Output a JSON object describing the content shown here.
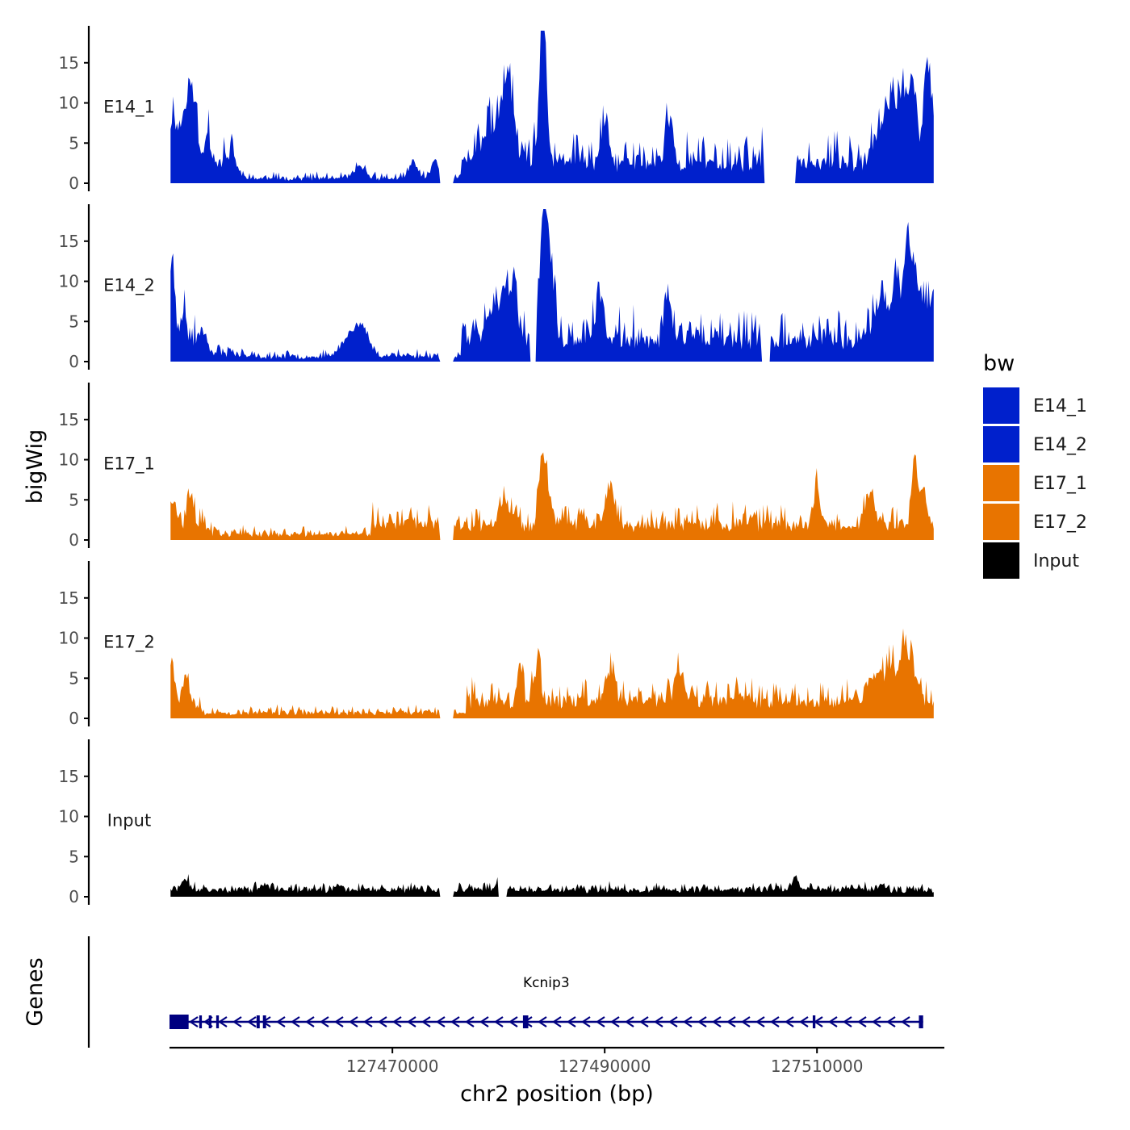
{
  "colors": {
    "E14": "#0020CC",
    "E17": "#E87400",
    "Input": "#000000",
    "gene": "#000080",
    "axis": "#000000"
  },
  "chart_data": {
    "type": "area",
    "title": "",
    "xlabel": "chr2 position (bp)",
    "ylabel": "bigWig",
    "genes_label": "Genes",
    "ylim": [
      0,
      19
    ],
    "yticks": [
      0,
      5,
      10,
      15
    ],
    "xlim": [
      127449000,
      127522000
    ],
    "xticks": [
      127470000,
      127490000,
      127510000
    ],
    "xtick_labels": [
      "127470000",
      "127490000",
      "127510000"
    ],
    "legend": {
      "title": "bw",
      "position": "right",
      "entries": [
        {
          "label": "E14_1",
          "color": "#0020CC"
        },
        {
          "label": "E14_2",
          "color": "#0020CC"
        },
        {
          "label": "E17_1",
          "color": "#E87400"
        },
        {
          "label": "E17_2",
          "color": "#E87400"
        },
        {
          "label": "Input",
          "color": "#000000"
        }
      ]
    },
    "series": [
      {
        "name": "E14_1",
        "color": "#0020CC",
        "seed": 11,
        "base": 2.2,
        "noise": 2.6,
        "low": [
          [
            127450000,
            127451200,
            1.8
          ],
          [
            127455000,
            127456500,
            0.8
          ],
          [
            127456500,
            127468000,
            0.5
          ],
          [
            127468000,
            127476500,
            0.5
          ],
          [
            127474500,
            127475800,
            -0.3
          ],
          [
            127505000,
            127508000,
            -0.4
          ]
        ],
        "peaks": [
          {
            "x": 127449300,
            "h": 5.5,
            "w": 400
          },
          {
            "x": 127450500,
            "h": 6.5,
            "w": 450
          },
          {
            "x": 127451200,
            "h": 7.2,
            "w": 350
          },
          {
            "x": 127452600,
            "h": 3.5,
            "w": 300
          },
          {
            "x": 127455000,
            "h": 2.5,
            "w": 300
          },
          {
            "x": 127467000,
            "h": 1.5,
            "w": 500
          },
          {
            "x": 127472000,
            "h": 2.0,
            "w": 400
          },
          {
            "x": 127474000,
            "h": 2.6,
            "w": 300
          },
          {
            "x": 127479000,
            "h": 4.0,
            "w": 700
          },
          {
            "x": 127480500,
            "h": 7.5,
            "w": 500
          },
          {
            "x": 127481200,
            "h": 5.5,
            "w": 400
          },
          {
            "x": 127484200,
            "h": 18.3,
            "w": 320
          },
          {
            "x": 127490000,
            "h": 5.0,
            "w": 300
          },
          {
            "x": 127496000,
            "h": 5.5,
            "w": 300
          },
          {
            "x": 127516000,
            "h": 4.5,
            "w": 700
          },
          {
            "x": 127517200,
            "h": 6.5,
            "w": 500
          },
          {
            "x": 127518200,
            "h": 8.0,
            "w": 400
          },
          {
            "x": 127519000,
            "h": 9.5,
            "w": 300
          },
          {
            "x": 127520300,
            "h": 9.8,
            "w": 300
          },
          {
            "x": 127521000,
            "h": 5.5,
            "w": 600
          }
        ]
      },
      {
        "name": "E14_2",
        "color": "#0020CC",
        "seed": 23,
        "base": 2.3,
        "noise": 2.5,
        "low": [
          [
            127452000,
            127456000,
            0.8
          ],
          [
            127456000,
            127468000,
            0.5
          ],
          [
            127468000,
            127476500,
            0.6
          ],
          [
            127474500,
            127475800,
            -0.3
          ],
          [
            127483000,
            127483600,
            -0.6
          ],
          [
            127504800,
            127505600,
            -0.5
          ]
        ],
        "peaks": [
          {
            "x": 127449200,
            "h": 10.0,
            "w": 250
          },
          {
            "x": 127450300,
            "h": 3.5,
            "w": 300
          },
          {
            "x": 127452300,
            "h": 2.8,
            "w": 300
          },
          {
            "x": 127466000,
            "h": 2.5,
            "w": 800
          },
          {
            "x": 127467200,
            "h": 3.0,
            "w": 600
          },
          {
            "x": 127479500,
            "h": 4.5,
            "w": 600
          },
          {
            "x": 127480700,
            "h": 5.5,
            "w": 450
          },
          {
            "x": 127481500,
            "h": 7.0,
            "w": 250
          },
          {
            "x": 127484200,
            "h": 14.5,
            "w": 300
          },
          {
            "x": 127484800,
            "h": 10.0,
            "w": 400
          },
          {
            "x": 127489500,
            "h": 5.0,
            "w": 400
          },
          {
            "x": 127496000,
            "h": 6.0,
            "w": 300
          },
          {
            "x": 127516000,
            "h": 4.5,
            "w": 700
          },
          {
            "x": 127517500,
            "h": 7.5,
            "w": 400
          },
          {
            "x": 127518500,
            "h": 12.5,
            "w": 300
          },
          {
            "x": 127519300,
            "h": 8.0,
            "w": 400
          },
          {
            "x": 127520500,
            "h": 4.5,
            "w": 500
          }
        ]
      },
      {
        "name": "E17_1",
        "color": "#E87400",
        "seed": 37,
        "base": 1.6,
        "noise": 1.8,
        "low": [
          [
            127453000,
            127455000,
            0.6
          ],
          [
            127455000,
            127468000,
            0.6
          ],
          [
            127474500,
            127475800,
            -0.3
          ]
        ],
        "peaks": [
          {
            "x": 127449300,
            "h": 3.5,
            "w": 300
          },
          {
            "x": 127451000,
            "h": 3.0,
            "w": 300
          },
          {
            "x": 127480500,
            "h": 3.5,
            "w": 500
          },
          {
            "x": 127484000,
            "h": 7.0,
            "w": 250
          },
          {
            "x": 127484500,
            "h": 6.0,
            "w": 300
          },
          {
            "x": 127490500,
            "h": 4.0,
            "w": 400
          },
          {
            "x": 127510000,
            "h": 5.0,
            "w": 300
          },
          {
            "x": 127515000,
            "h": 3.0,
            "w": 500
          },
          {
            "x": 127519200,
            "h": 8.5,
            "w": 250
          },
          {
            "x": 127520000,
            "h": 5.0,
            "w": 300
          }
        ]
      },
      {
        "name": "E17_2",
        "color": "#E87400",
        "seed": 53,
        "base": 1.9,
        "noise": 2.0,
        "low": [
          [
            127452000,
            127456000,
            0.5
          ],
          [
            127456000,
            127477000,
            0.6
          ],
          [
            127474500,
            127475800,
            -0.3
          ]
        ],
        "peaks": [
          {
            "x": 127449200,
            "h": 5.5,
            "w": 250
          },
          {
            "x": 127450500,
            "h": 3.0,
            "w": 300
          },
          {
            "x": 127482000,
            "h": 5.0,
            "w": 250
          },
          {
            "x": 127483700,
            "h": 4.5,
            "w": 300
          },
          {
            "x": 127490500,
            "h": 4.0,
            "w": 400
          },
          {
            "x": 127497000,
            "h": 4.0,
            "w": 400
          },
          {
            "x": 127515500,
            "h": 3.5,
            "w": 600
          },
          {
            "x": 127517000,
            "h": 4.5,
            "w": 500
          },
          {
            "x": 127518200,
            "h": 6.5,
            "w": 300
          },
          {
            "x": 127519000,
            "h": 4.5,
            "w": 400
          }
        ]
      },
      {
        "name": "Input",
        "color": "#000000",
        "seed": 71,
        "base": 0.75,
        "noise": 0.6,
        "low": [
          [
            127474500,
            127475800,
            -0.4
          ],
          [
            127480000,
            127480800,
            -0.2
          ]
        ],
        "peaks": [
          {
            "x": 127450500,
            "h": 1.2,
            "w": 400
          },
          {
            "x": 127458000,
            "h": 0.8,
            "w": 300
          },
          {
            "x": 127465000,
            "h": 0.8,
            "w": 300
          },
          {
            "x": 127480000,
            "h": 0.8,
            "w": 400
          },
          {
            "x": 127508000,
            "h": 1.3,
            "w": 300
          },
          {
            "x": 127516000,
            "h": 0.8,
            "w": 300
          }
        ]
      }
    ],
    "gene": {
      "name": "Kcnip3",
      "start": 127449000,
      "end": 127520000,
      "strand": "-",
      "exons": [
        [
          127449000,
          127450800
        ],
        [
          127451800,
          127452050
        ],
        [
          127452700,
          127452950
        ],
        [
          127453400,
          127453650
        ],
        [
          127457200,
          127457500
        ],
        [
          127457800,
          127458100
        ],
        [
          127482300,
          127482800
        ],
        [
          127509600,
          127509850
        ],
        [
          127519600,
          127520000
        ]
      ]
    }
  }
}
